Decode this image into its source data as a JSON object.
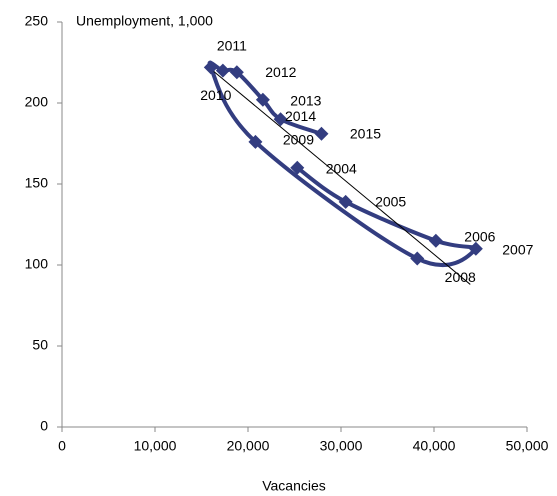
{
  "chart_data": {
    "type": "scatter",
    "x_label": "Vacancies",
    "y_label": "Unemployment, 1,000",
    "x": [
      25300,
      30500,
      40200,
      44500,
      38200,
      20800,
      16000,
      17300,
      18800,
      21600,
      23500,
      27900
    ],
    "values": [
      160,
      139,
      115,
      110,
      104,
      176,
      222,
      220,
      219,
      202,
      190,
      181
    ],
    "point_labels": [
      "2004",
      "2005",
      "2006",
      "2007",
      "2008",
      "2009",
      "2010",
      "2011",
      "2012",
      "2013",
      "2014",
      "2015"
    ],
    "color": "#333d80",
    "trendline": {
      "x": [
        16000,
        43900
      ],
      "values": [
        221,
        88
      ],
      "color": "#000000"
    },
    "xlim": [
      0,
      50000
    ],
    "xticks": [
      0,
      {
        "value": 10000,
        "label": "10,000"
      },
      {
        "value": 20000,
        "label": "20,000"
      },
      {
        "value": 30000,
        "label": "30,000"
      },
      {
        "value": 40000,
        "label": "40,000"
      },
      {
        "value": 50000,
        "label": "50,000"
      }
    ],
    "ylim": [
      0,
      250
    ],
    "yticks": [
      0,
      50,
      100,
      150,
      200,
      250
    ]
  }
}
